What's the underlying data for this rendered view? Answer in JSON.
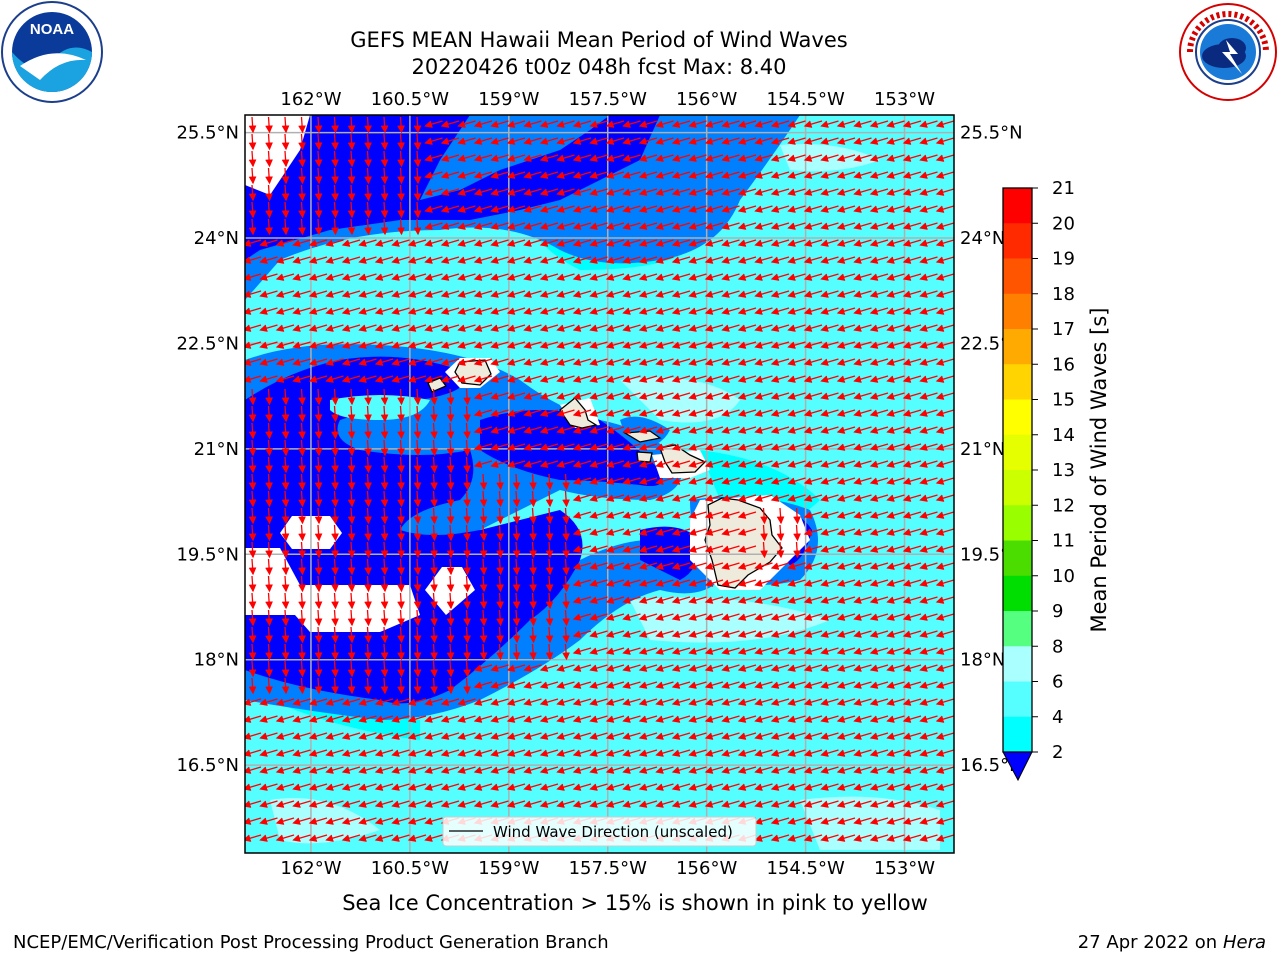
{
  "title": {
    "line1": "GEFS MEAN Hawaii Mean Period of Wind Waves",
    "line2": "20220426 t00z 048h fcst   Max: 8.40"
  },
  "logos": {
    "left": "noaa-logo",
    "right": "national-weather-service-logo"
  },
  "map": {
    "lon_labels": [
      "162°W",
      "160.5°W",
      "159°W",
      "157.5°W",
      "156°W",
      "154.5°W",
      "153°W"
    ],
    "lat_labels": [
      "25.5°N",
      "24°N",
      "22.5°N",
      "21°N",
      "19.5°N",
      "18°N",
      "16.5°N"
    ],
    "lon_range": [
      -163,
      -152.25
    ],
    "lat_range": [
      15.25,
      25.75
    ],
    "legend_label": "Wind Wave Direction (unscaled)",
    "vector_color": "#ff0000",
    "land_color": "#efebdc",
    "grid": true
  },
  "colorbar": {
    "label": "Mean Period of Wind Waves [s]",
    "ticks": [
      "21",
      "20",
      "19",
      "18",
      "17",
      "16",
      "15",
      "14",
      "13",
      "12",
      "11",
      "10",
      "9",
      "8",
      "6",
      "4",
      "2"
    ],
    "colors": [
      "#ff0000",
      "#ff2a00",
      "#ff5500",
      "#ff7f00",
      "#ffaa00",
      "#ffd400",
      "#ffff00",
      "#e6ff00",
      "#ccff00",
      "#99ff00",
      "#4cdd00",
      "#00dd00",
      "#55ff80",
      "#aaffff",
      "#55ffff",
      "#00ffff",
      "#0080ff"
    ],
    "under_color": "#0000ff"
  },
  "caption": "Sea Ice Concentration > 15% is shown in pink to yellow",
  "credit_left": "NCEP/EMC/Verification Post Processing Product Generation Branch",
  "credit_right_date": "27 Apr 2022 on ",
  "credit_right_host": "Hera"
}
